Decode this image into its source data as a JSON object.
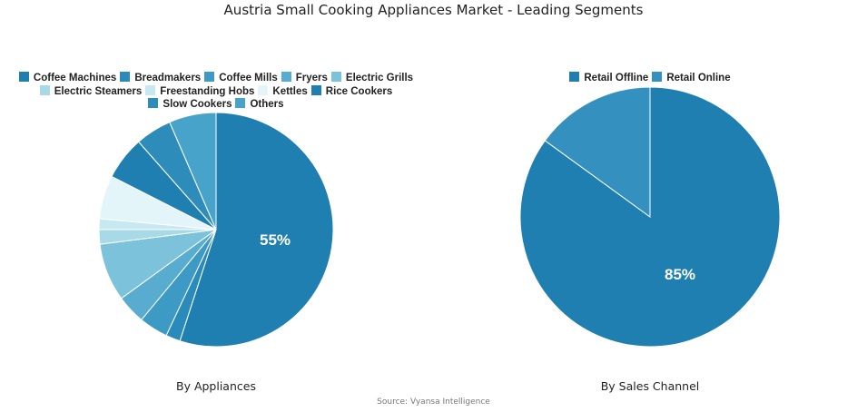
{
  "title": "Austria Small Cooking Appliances Market - Leading Segments",
  "source": "Source: Vyansa Intelligence",
  "chart_data": [
    {
      "type": "pie",
      "title": "By Appliances",
      "categories": [
        "Coffee Machines",
        "Breadmakers",
        "Coffee Mills",
        "Fryers",
        "Electric Grills",
        "Electric Steamers",
        "Freestanding Hobs",
        "Kettles",
        "Rice Cookers",
        "Slow Cookers",
        "Others"
      ],
      "values": [
        55,
        2,
        4,
        4,
        8,
        2,
        1.5,
        6,
        6,
        5,
        6.5
      ],
      "colors": [
        "#1f7fb0",
        "#2a8bbb",
        "#3d9ac4",
        "#58acd0",
        "#7bc2da",
        "#a7d9e6",
        "#c7e8f0",
        "#e4f5f9",
        "#1f7fb0",
        "#2e8cbb",
        "#48a3cb"
      ],
      "data_labels": [
        "55%"
      ],
      "legend_position": "top"
    },
    {
      "type": "pie",
      "title": "By Sales Channel",
      "categories": [
        "Retail Offline",
        "Retail Online"
      ],
      "values": [
        85,
        15
      ],
      "colors": [
        "#1f7fb0",
        "#3390bf"
      ],
      "data_labels": [
        "85%"
      ],
      "legend_position": "top"
    }
  ],
  "legend_left": {
    "rows": [
      [
        {
          "label": "Coffee Machines",
          "color": "#1f7fb0"
        },
        {
          "label": "Breadmakers",
          "color": "#2a8bbb"
        },
        {
          "label": "Coffee Mills",
          "color": "#3d9ac4"
        },
        {
          "label": "Fryers",
          "color": "#58acd0"
        },
        {
          "label": "Electric Grills",
          "color": "#7bc2da"
        }
      ],
      [
        {
          "label": "Electric Steamers",
          "color": "#a7d9e6"
        },
        {
          "label": "Freestanding Hobs",
          "color": "#c7e8f0"
        },
        {
          "label": "Kettles",
          "color": "#e4f5f9"
        },
        {
          "label": "Rice Cookers",
          "color": "#1f7fb0"
        }
      ],
      [
        {
          "label": "Slow Cookers",
          "color": "#2e8cbb"
        },
        {
          "label": "Others",
          "color": "#48a3cb"
        }
      ]
    ]
  },
  "legend_right": {
    "rows": [
      [
        {
          "label": "Retail Offline",
          "color": "#1f7fb0"
        },
        {
          "label": "Retail Online",
          "color": "#3390bf"
        }
      ]
    ]
  },
  "subtitles": {
    "left": "By Appliances",
    "right": "By Sales Channel"
  },
  "labels": {
    "left_pct": "55%",
    "right_pct": "85%"
  }
}
